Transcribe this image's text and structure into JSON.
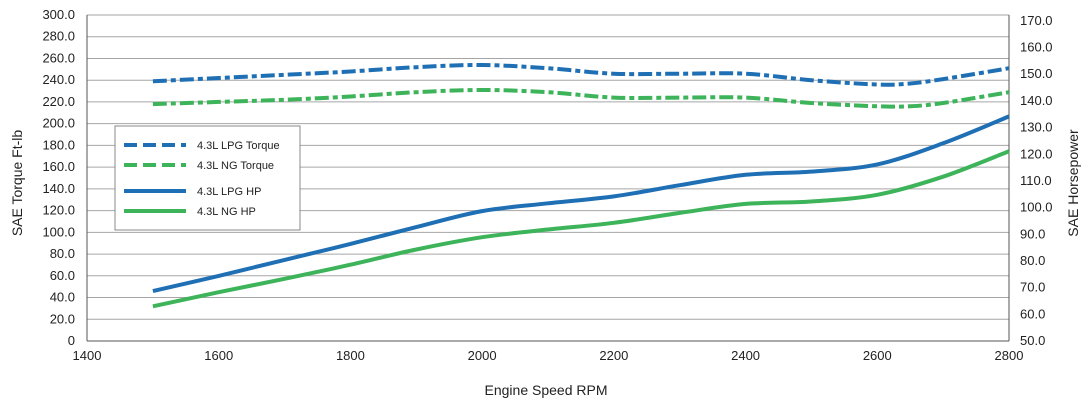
{
  "chart_data": {
    "type": "line",
    "xlabel": "Engine Speed RPM",
    "ylabel_left": "SAE Torque Ft-lb",
    "ylabel_right": "SAE Horsepower",
    "x_ticks": [
      "1400",
      "1600",
      "1800",
      "2000",
      "2200",
      "2400",
      "2600",
      "2800"
    ],
    "xlim": [
      1400,
      2800
    ],
    "y_left_ticks": [
      "0",
      "20.0",
      "40.0",
      "60.0",
      "80.0",
      "100.0",
      "120.0",
      "140.0",
      "160.0",
      "180.0",
      "200.0",
      "220.0",
      "240.0",
      "260.0",
      "280.0",
      "300.0"
    ],
    "ylim_left": [
      0,
      300
    ],
    "y_right_ticks": [
      "50.0",
      "60.0",
      "70.0",
      "80.0",
      "90.0",
      "100.0",
      "110.0",
      "120.0",
      "130.0",
      "140.0",
      "150.0",
      "160.0",
      "170.0"
    ],
    "ylim_right": [
      50,
      172.2
    ],
    "grid": true,
    "legend_position": "left",
    "series": [
      {
        "name": "4.3L LPG Torque",
        "axis": "left",
        "style": "dashdot",
        "color": "#1f6fb5",
        "x": [
          1500,
          1600,
          1700,
          1800,
          1900,
          2000,
          2100,
          2200,
          2300,
          2400,
          2500,
          2600,
          2650,
          2700,
          2800
        ],
        "values": [
          239,
          242,
          245,
          248,
          252,
          254,
          251,
          246,
          246,
          246,
          240,
          236,
          237,
          241,
          251
        ]
      },
      {
        "name": "4.3L NG Torque",
        "axis": "left",
        "style": "dashdot",
        "color": "#3db35a",
        "x": [
          1500,
          1600,
          1700,
          1800,
          1900,
          2000,
          2100,
          2200,
          2300,
          2400,
          2500,
          2600,
          2650,
          2700,
          2800
        ],
        "values": [
          218,
          220,
          222,
          225,
          229,
          231,
          229,
          224,
          224,
          224,
          219,
          216,
          216,
          219,
          229
        ]
      },
      {
        "name": "4.3L LPG HP",
        "axis": "right",
        "style": "solid",
        "color": "#1f6fb5",
        "x": [
          1500,
          1600,
          1700,
          1800,
          1900,
          2000,
          2100,
          2200,
          2300,
          2400,
          2500,
          2600,
          2700,
          2800
        ],
        "values": [
          68.7,
          74.4,
          80.4,
          86.4,
          92.7,
          98.7,
          101.6,
          104.2,
          108.4,
          112.3,
          113.5,
          116.2,
          124.1,
          134.2
        ]
      },
      {
        "name": "4.3L NG HP",
        "axis": "right",
        "style": "solid",
        "color": "#3db35a",
        "x": [
          1500,
          1600,
          1700,
          1800,
          1900,
          2000,
          2100,
          2200,
          2300,
          2400,
          2500,
          2600,
          2700,
          2800
        ],
        "values": [
          63.0,
          68.3,
          73.3,
          78.6,
          84.3,
          88.9,
          91.8,
          94.3,
          98.0,
          101.4,
          102.3,
          104.8,
          111.6,
          121.1
        ]
      }
    ]
  }
}
